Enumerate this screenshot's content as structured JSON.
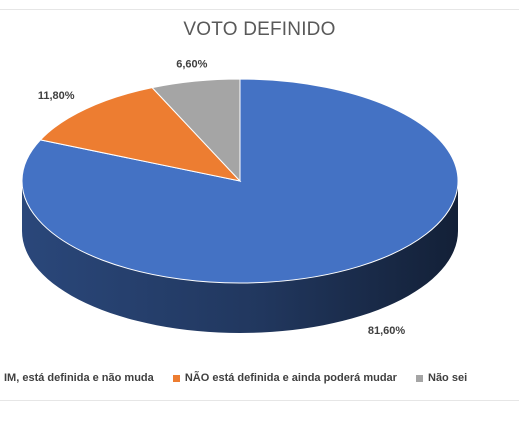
{
  "chart_data": {
    "type": "pie",
    "title": "VOTO DEFINIDO",
    "categories": [
      "SIM, está definida e não muda",
      "NÃO está definida e ainda poderá mudar",
      "Não sei"
    ],
    "values": [
      81.6,
      11.8,
      6.6
    ],
    "data_labels": [
      "81,60%",
      "11,80%",
      "6,60%"
    ],
    "colors": [
      "#4472C4",
      "#ED7D31",
      "#A5A5A5"
    ],
    "legend_placement": "bottom",
    "legend_visible_text": [
      "IM, está definida e não muda",
      "NÃO está definida e ainda poderá mudar",
      "Não sei"
    ]
  }
}
